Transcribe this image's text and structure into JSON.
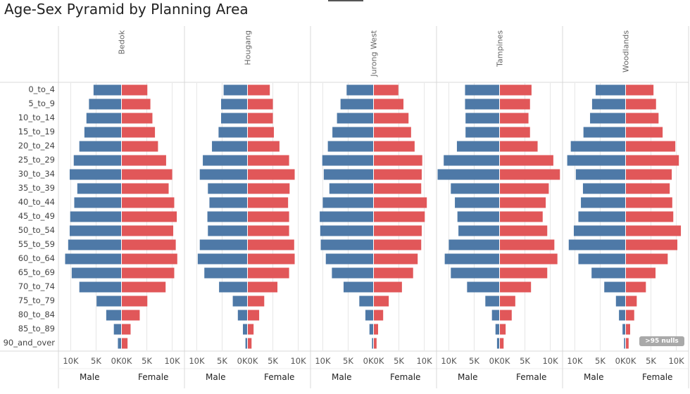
{
  "header": {
    "title": "Age-Sex Pyramid by Planning Area"
  },
  "nulls_indicator": ">95 nulls",
  "chart_data": {
    "type": "bar",
    "title": "Age-Sex Pyramid by Planning Area",
    "categories": [
      "0_to_4",
      "5_to_9",
      "10_to_14",
      "15_to_19",
      "20_to_24",
      "25_to_29",
      "30_to_34",
      "35_to_39",
      "40_to_44",
      "45_to_49",
      "50_to_54",
      "55_to_59",
      "60_to_64",
      "65_to_69",
      "70_to_74",
      "75_to_79",
      "80_to_84",
      "85_to_89",
      "90_and_over"
    ],
    "x_ticks_male": [
      "10K",
      "5K",
      "0K"
    ],
    "x_ticks_female": [
      "0K",
      "5K",
      "10K"
    ],
    "xlim_male": [
      12000,
      0
    ],
    "xlim_female": [
      0,
      12000
    ],
    "sex_labels": [
      "Male",
      "Female"
    ],
    "colors": {
      "male": "#4e79a7",
      "female": "#e15759",
      "grid": "#e6e6e6",
      "divider": "#d9d9d9"
    },
    "panels": [
      {
        "area": "Bedok",
        "male": [
          5500,
          6400,
          6900,
          7300,
          8300,
          9400,
          10200,
          8700,
          9300,
          10100,
          10200,
          10500,
          11100,
          9800,
          8300,
          4900,
          3000,
          1500,
          700
        ],
        "female": [
          5100,
          5700,
          6100,
          6600,
          7200,
          8800,
          10000,
          9300,
          10400,
          10900,
          10200,
          10700,
          11000,
          10400,
          8700,
          5100,
          3600,
          1800,
          1200
        ]
      },
      {
        "area": "Hougang",
        "male": [
          4700,
          5200,
          5200,
          5700,
          7000,
          8800,
          9400,
          7800,
          7500,
          7900,
          7800,
          9400,
          9800,
          8500,
          5600,
          2900,
          1900,
          900,
          400
        ],
        "female": [
          4400,
          5000,
          5000,
          5200,
          6300,
          8200,
          9300,
          8300,
          8000,
          8200,
          8200,
          9200,
          9300,
          8200,
          5900,
          3300,
          2300,
          1200,
          800
        ]
      },
      {
        "area": "Jurong West",
        "male": [
          5300,
          6500,
          7200,
          8100,
          9000,
          10100,
          9800,
          8700,
          10000,
          10600,
          10500,
          10400,
          9400,
          8200,
          5900,
          2800,
          1600,
          800,
          300
        ],
        "female": [
          4900,
          5900,
          6900,
          7400,
          8100,
          9600,
          9500,
          9400,
          10500,
          10100,
          9500,
          9400,
          8700,
          7800,
          5600,
          3000,
          1900,
          900,
          600
        ]
      },
      {
        "area": "Tampines",
        "male": [
          6800,
          6800,
          6700,
          6700,
          8400,
          11000,
          12200,
          9600,
          8800,
          8300,
          8100,
          10000,
          10800,
          9600,
          6400,
          2800,
          1500,
          800,
          500
        ],
        "female": [
          6300,
          6000,
          5700,
          6000,
          7500,
          10600,
          11900,
          9700,
          9100,
          8500,
          9400,
          10800,
          11400,
          9400,
          6200,
          3100,
          2400,
          1200,
          800
        ]
      },
      {
        "area": "Woodlands",
        "male": [
          5900,
          6600,
          7000,
          8300,
          10800,
          11500,
          9800,
          8400,
          8800,
          9300,
          10200,
          11200,
          9300,
          6700,
          4200,
          1900,
          1300,
          600,
          300
        ],
        "female": [
          5500,
          6000,
          6500,
          7300,
          9800,
          10500,
          9100,
          8700,
          9200,
          9400,
          10900,
          10200,
          8300,
          5900,
          4000,
          2200,
          1700,
          900,
          600
        ]
      }
    ]
  }
}
